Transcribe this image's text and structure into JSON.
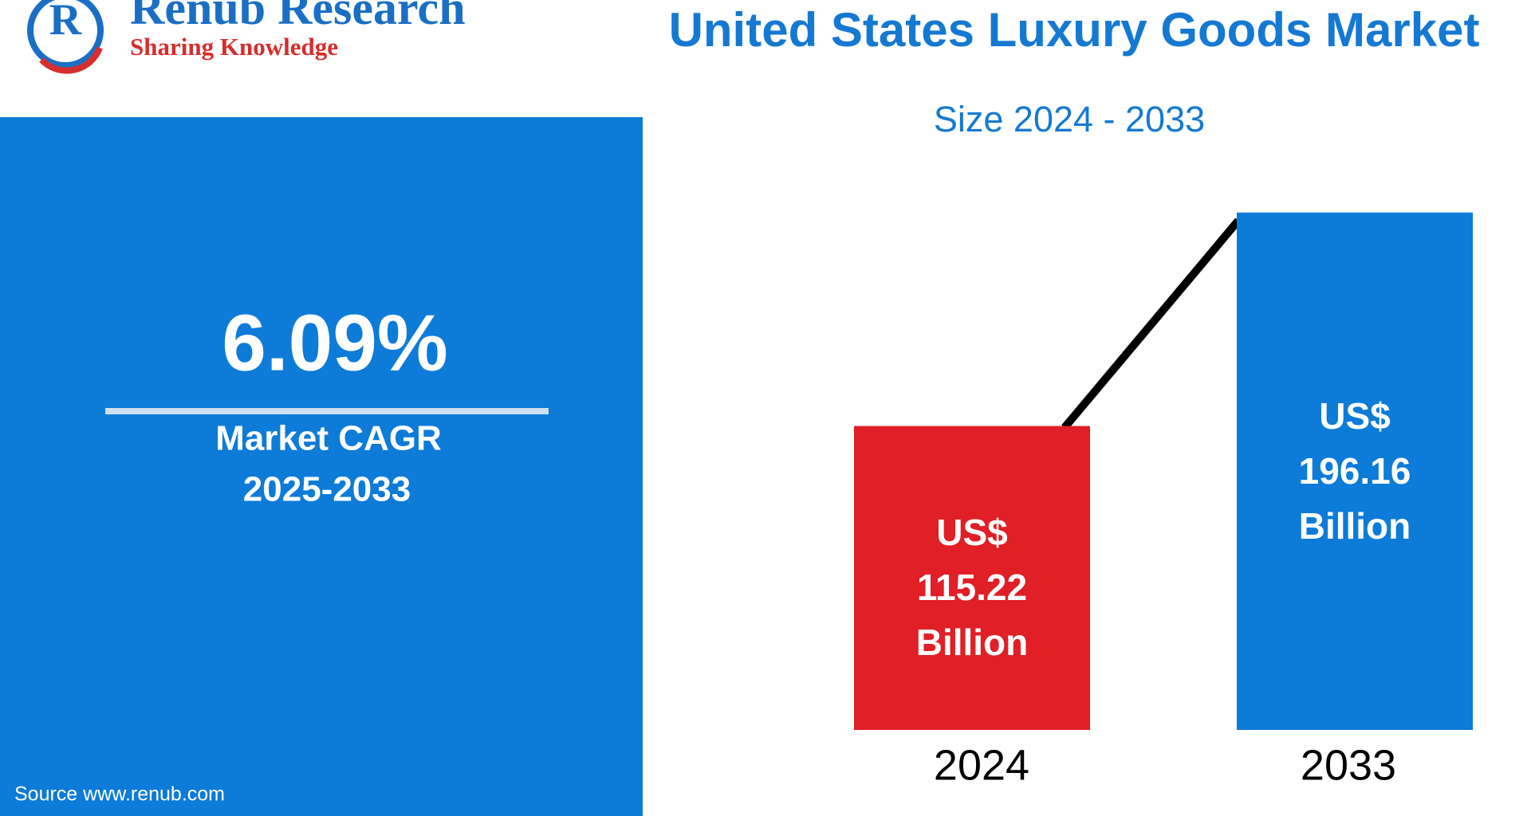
{
  "logo": {
    "name": "Renub Research",
    "tagline": "Sharing Knowledge"
  },
  "kpi": {
    "value": "6.09%",
    "label_lines": [
      "Market CAGR",
      "2025-2033"
    ]
  },
  "source": "Source  www.renub.com",
  "chart_data": {
    "type": "bar",
    "title": "United States Luxury Goods Market",
    "subtitle": "Size 2024 - 2033",
    "categories": [
      "2024",
      "2033"
    ],
    "values": [
      115.22,
      196.16
    ],
    "value_labels": [
      "US$ 115.22 Billion",
      "US$ 196.16 Billion"
    ],
    "colors": [
      "#e01f26",
      "#0d7bd8"
    ]
  }
}
